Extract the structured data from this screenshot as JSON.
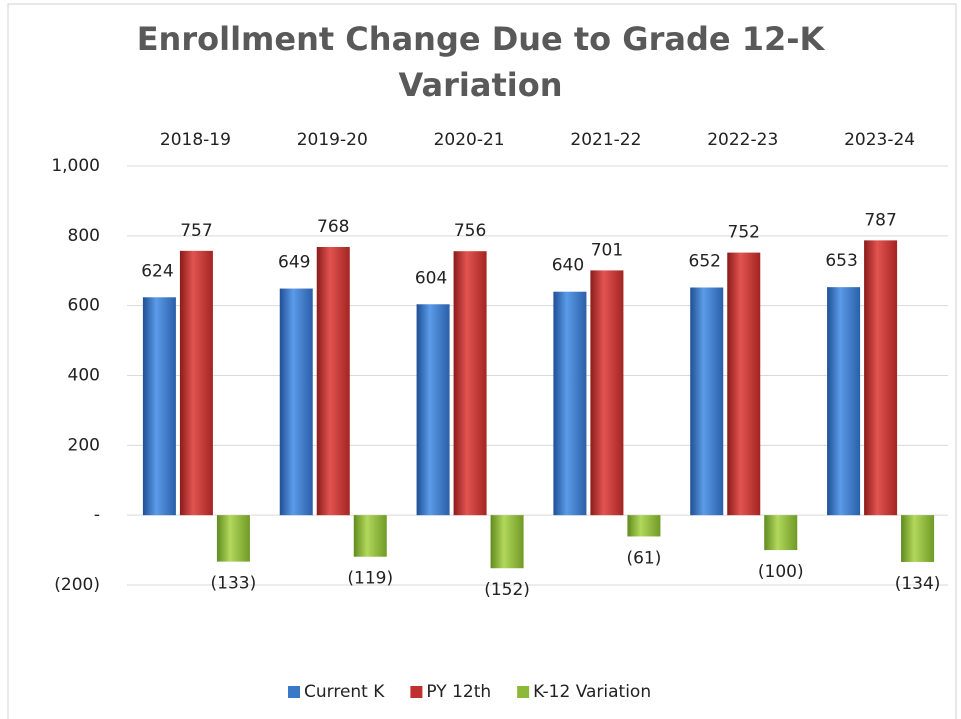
{
  "chart_data": {
    "type": "bar",
    "title": "Enrollment Change Due to Grade 12-K Variation",
    "categories": [
      "2018-19",
      "2019-20",
      "2020-21",
      "2021-22",
      "2022-23",
      "2023-24"
    ],
    "series": [
      {
        "name": "Current K",
        "color": "#3a78c8",
        "values": [
          624,
          649,
          604,
          640,
          652,
          653
        ]
      },
      {
        "name": "PY 12th",
        "color": "#c0302e",
        "values": [
          757,
          768,
          756,
          701,
          752,
          787
        ]
      },
      {
        "name": "K-12 Variation",
        "color": "#8db83a",
        "values": [
          -133,
          -119,
          -152,
          -61,
          -100,
          -134
        ],
        "value_labels": [
          "(133)",
          "(119)",
          "(152)",
          "(61)",
          "(100)",
          "(134)"
        ]
      }
    ],
    "ylim": [
      -200,
      1000
    ],
    "yticks": [
      {
        "value": 1000,
        "label": "1,000"
      },
      800,
      600,
      400,
      200,
      {
        "value": 0,
        "label": "-"
      },
      {
        "value": -200,
        "label": "(200)"
      }
    ],
    "grid": true,
    "legend": "bottom"
  }
}
